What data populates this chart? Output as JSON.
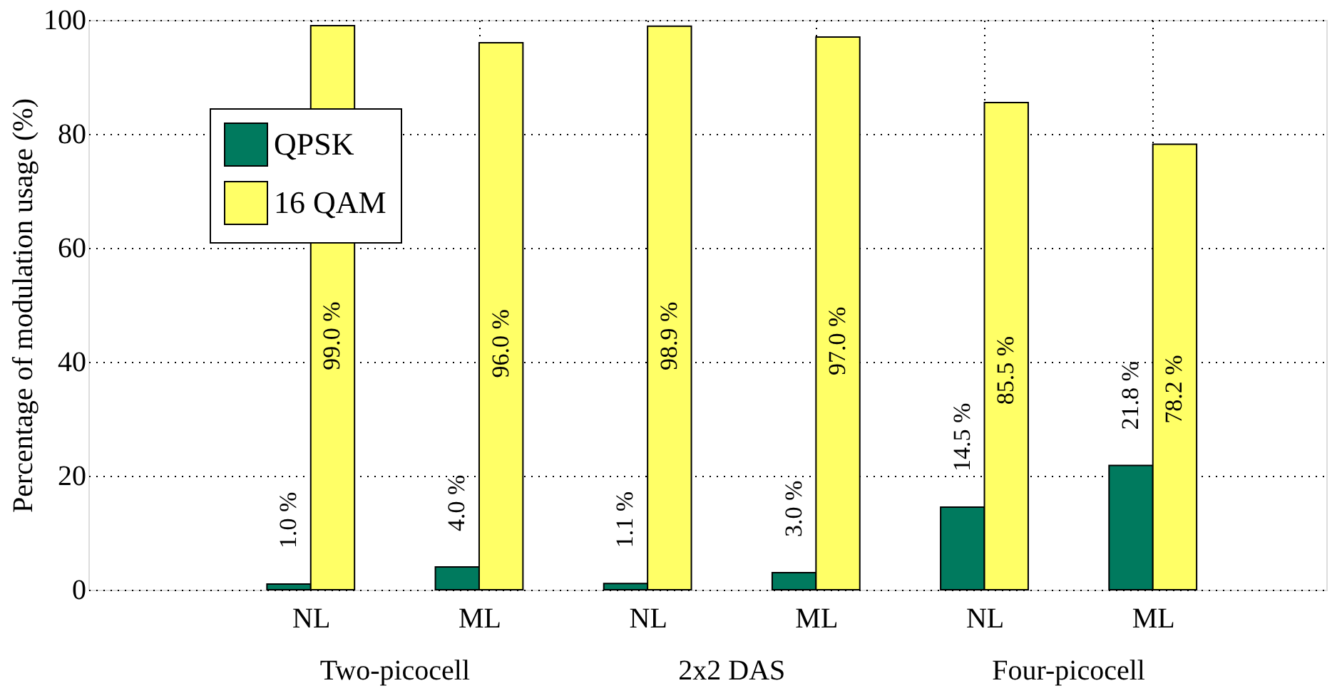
{
  "chart_data": {
    "type": "bar",
    "ylabel": "Percentage of modulation usage (%)",
    "categories": [
      "NL",
      "ML",
      "NL",
      "ML",
      "NL",
      "ML"
    ],
    "series": [
      {
        "name": "QPSK",
        "color": "#007a5e",
        "values": [
          1.0,
          4.0,
          1.1,
          3.0,
          14.5,
          21.8
        ],
        "value_labels": [
          "1.0 %",
          "4.0 %",
          "1.1 %",
          "3.0 %",
          "14.5 %",
          "21.8 %"
        ]
      },
      {
        "name": "16 QAM",
        "color": "#ffff66",
        "values": [
          99.0,
          96.0,
          98.9,
          97.0,
          85.5,
          78.2
        ],
        "value_labels": [
          "99.0 %",
          "96.0 %",
          "98.9 %",
          "97.0 %",
          "85.5 %",
          "78.2 %"
        ]
      }
    ],
    "annotations": [
      "Two-picocell",
      "2x2 DAS",
      "Four-picocell"
    ],
    "ylim": [
      0,
      100
    ],
    "yticks": [
      0,
      20,
      40,
      60,
      80,
      100
    ],
    "grid": true,
    "legend": "top left"
  }
}
